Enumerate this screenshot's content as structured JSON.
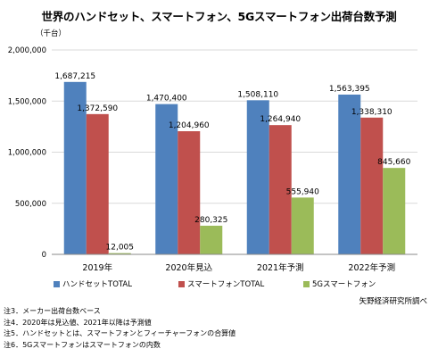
{
  "title": "世界のハンドセット、スマートフォン、5Gスマートフォン出荷台数予測",
  "unit": "（千台）",
  "source": "矢野経済研究所調べ",
  "notes": [
    "注3．メーカー出荷台数ベース",
    "注4．2020年は見込値、2021年以降は予測値",
    "注5．ハンドセットとは、スマートフォンとフィーチャーフォンの合算値",
    "注6．5Gスマートフォンはスマートフォンの内数"
  ],
  "chart_data": {
    "type": "bar",
    "categories": [
      "2019年",
      "2020年見込",
      "2021年予測",
      "2022年予測"
    ],
    "series": [
      {
        "name": "ハンドセットTOTAL",
        "color": "#4f81bd",
        "values": [
          1687215,
          1470400,
          1508110,
          1563395
        ],
        "labels": [
          "1,687,215",
          "1,470,400",
          "1,508,110",
          "1,563,395"
        ]
      },
      {
        "name": "スマートフォンTOTAL",
        "color": "#c0504d",
        "values": [
          1372590,
          1204960,
          1264940,
          1338310
        ],
        "labels": [
          "1,372,590",
          "1,204,960",
          "1,264,940",
          "1,338,310"
        ]
      },
      {
        "name": "5Gスマートフォン",
        "color": "#9bbb59",
        "values": [
          12005,
          280325,
          555940,
          845660
        ],
        "labels": [
          "12,005",
          "280,325",
          "555,940",
          "845,660"
        ]
      }
    ],
    "yticks": [
      0,
      500000,
      1000000,
      1500000,
      2000000
    ],
    "ytick_labels": [
      "0",
      "500,000",
      "1,000,000",
      "1,500,000",
      "2,000,000"
    ],
    "ylim": [
      0,
      2000000
    ],
    "grid": true,
    "legend": "bottom"
  }
}
